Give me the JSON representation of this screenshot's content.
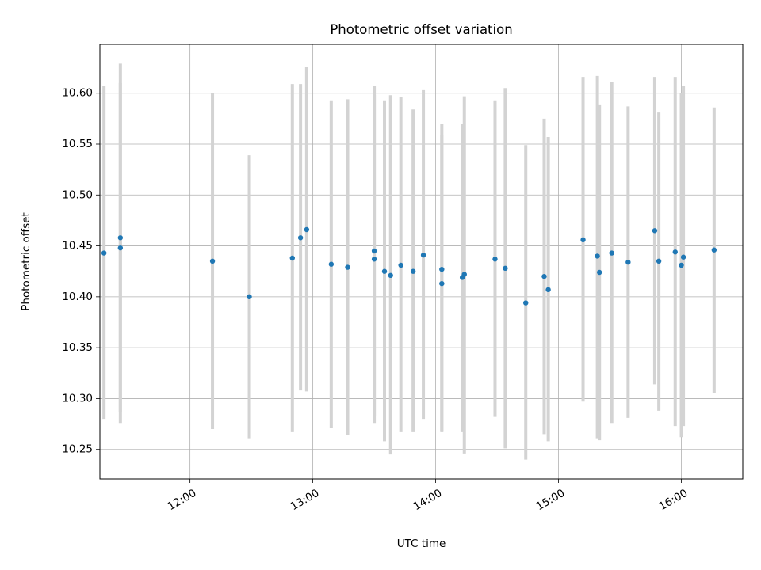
{
  "chart_data": {
    "type": "scatter",
    "title": "Photometric offset variation",
    "xlabel": "UTC time",
    "ylabel": "Photometric offset",
    "grid": true,
    "xlim": [
      "11:16",
      "16:30"
    ],
    "ylim": [
      10.221,
      10.648
    ],
    "x_ticks": [
      "12:00",
      "13:00",
      "14:00",
      "15:00",
      "16:00"
    ],
    "y_ticks": [
      10.25,
      10.3,
      10.35,
      10.4,
      10.45,
      10.5,
      10.55,
      10.6
    ],
    "colors": {
      "point": "#1f77b4",
      "error_bar": "#d3d3d3",
      "grid": "#b0b0b0"
    },
    "series": [
      {
        "points": [
          {
            "x": "11:18",
            "y": 10.443,
            "low": 10.28,
            "high": 10.607
          },
          {
            "x": "11:26",
            "y": 10.448,
            "low": 10.287,
            "high": 10.61
          },
          {
            "x": "11:26",
            "y": 10.458,
            "low": 10.276,
            "high": 10.629
          },
          {
            "x": "12:11",
            "y": 10.435,
            "low": 10.27,
            "high": 10.6
          },
          {
            "x": "12:29",
            "y": 10.4,
            "low": 10.261,
            "high": 10.539
          },
          {
            "x": "12:50",
            "y": 10.438,
            "low": 10.267,
            "high": 10.609
          },
          {
            "x": "12:54",
            "y": 10.458,
            "low": 10.308,
            "high": 10.609
          },
          {
            "x": "12:57",
            "y": 10.466,
            "low": 10.307,
            "high": 10.626
          },
          {
            "x": "13:09",
            "y": 10.432,
            "low": 10.271,
            "high": 10.593
          },
          {
            "x": "13:17",
            "y": 10.429,
            "low": 10.264,
            "high": 10.594
          },
          {
            "x": "13:30",
            "y": 10.437,
            "low": 10.276,
            "high": 10.598
          },
          {
            "x": "13:30",
            "y": 10.445,
            "low": 10.283,
            "high": 10.607
          },
          {
            "x": "13:35",
            "y": 10.425,
            "low": 10.258,
            "high": 10.593
          },
          {
            "x": "13:38",
            "y": 10.421,
            "low": 10.245,
            "high": 10.598
          },
          {
            "x": "13:43",
            "y": 10.431,
            "low": 10.267,
            "high": 10.596
          },
          {
            "x": "13:49",
            "y": 10.425,
            "low": 10.267,
            "high": 10.584
          },
          {
            "x": "13:54",
            "y": 10.441,
            "low": 10.28,
            "high": 10.603
          },
          {
            "x": "14:03",
            "y": 10.427,
            "low": 10.267,
            "high": 10.57
          },
          {
            "x": "14:03",
            "y": 10.413,
            "low": 10.268,
            "high": 10.559
          },
          {
            "x": "14:13",
            "y": 10.419,
            "low": 10.267,
            "high": 10.57
          },
          {
            "x": "14:14",
            "y": 10.422,
            "low": 10.246,
            "high": 10.597
          },
          {
            "x": "14:29",
            "y": 10.437,
            "low": 10.282,
            "high": 10.593
          },
          {
            "x": "14:34",
            "y": 10.428,
            "low": 10.251,
            "high": 10.605
          },
          {
            "x": "14:44",
            "y": 10.394,
            "low": 10.24,
            "high": 10.549
          },
          {
            "x": "14:53",
            "y": 10.42,
            "low": 10.265,
            "high": 10.575
          },
          {
            "x": "14:55",
            "y": 10.407,
            "low": 10.258,
            "high": 10.557
          },
          {
            "x": "15:12",
            "y": 10.456,
            "low": 10.297,
            "high": 10.616
          },
          {
            "x": "15:19",
            "y": 10.44,
            "low": 10.261,
            "high": 10.617
          },
          {
            "x": "15:20",
            "y": 10.424,
            "low": 10.259,
            "high": 10.589
          },
          {
            "x": "15:26",
            "y": 10.443,
            "low": 10.276,
            "high": 10.611
          },
          {
            "x": "15:34",
            "y": 10.434,
            "low": 10.281,
            "high": 10.587
          },
          {
            "x": "15:47",
            "y": 10.465,
            "low": 10.314,
            "high": 10.616
          },
          {
            "x": "15:49",
            "y": 10.435,
            "low": 10.288,
            "high": 10.581
          },
          {
            "x": "15:57",
            "y": 10.444,
            "low": 10.273,
            "high": 10.616
          },
          {
            "x": "16:00",
            "y": 10.431,
            "low": 10.262,
            "high": 10.6
          },
          {
            "x": "16:01",
            "y": 10.439,
            "low": 10.273,
            "high": 10.607
          },
          {
            "x": "16:16",
            "y": 10.446,
            "low": 10.305,
            "high": 10.586
          }
        ]
      }
    ]
  }
}
